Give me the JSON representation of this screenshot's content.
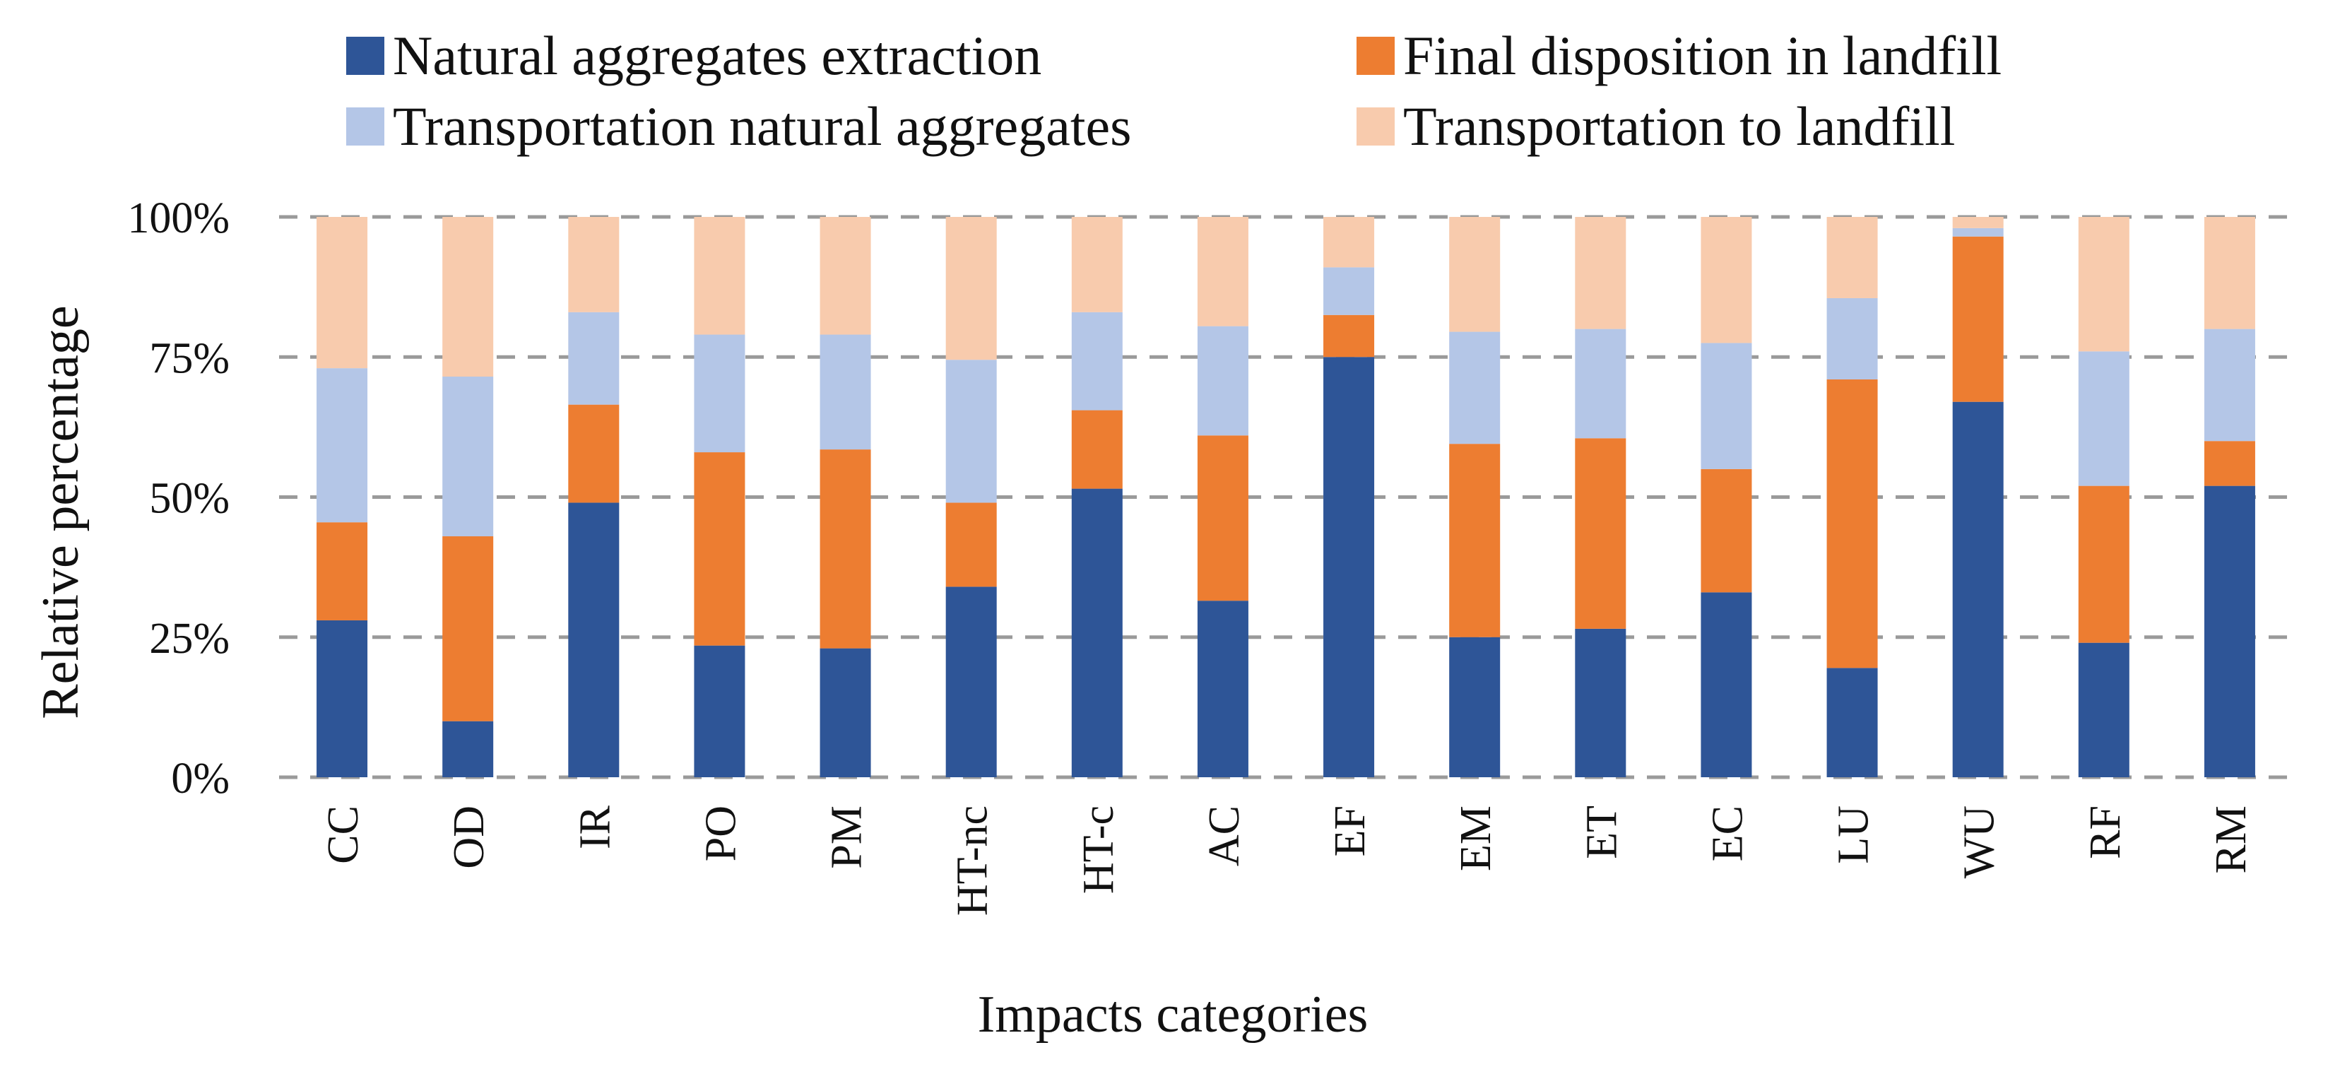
{
  "chart_data": {
    "type": "bar",
    "stacked": true,
    "normalized": true,
    "title": "",
    "xlabel": "Impacts categories",
    "ylabel": "Relative percentage",
    "ylim": [
      0,
      100
    ],
    "yticks": [
      0,
      25,
      50,
      75,
      100
    ],
    "ytick_labels": [
      "0%",
      "25%",
      "50%",
      "75%",
      "100%"
    ],
    "grid": true,
    "legend_position": "top",
    "categories": [
      "CC",
      "OD",
      "IR",
      "PO",
      "PM",
      "HT-nc",
      "HT-c",
      "AC",
      "EF",
      "EM",
      "ET",
      "EC",
      "LU",
      "WU",
      "RF",
      "RM"
    ],
    "series": [
      {
        "name": "Natural aggregates extraction",
        "color": "#2e5597",
        "values": [
          28,
          10,
          49,
          23.5,
          23,
          34,
          51.5,
          31.5,
          75,
          25,
          26.5,
          33,
          19.5,
          67,
          24,
          52
        ]
      },
      {
        "name": "Final disposition in landfill",
        "color": "#ed7d31",
        "values": [
          17.5,
          33,
          17.5,
          34.5,
          35.5,
          15,
          14,
          29.5,
          7.5,
          34.5,
          34,
          22,
          51.5,
          29.5,
          28,
          8
        ]
      },
      {
        "name": "Transportation natural aggregates",
        "color": "#b4c6e7",
        "values": [
          27.5,
          28.5,
          16.5,
          21,
          20.5,
          25.5,
          17.5,
          19.5,
          8.5,
          20,
          19.5,
          22.5,
          14.5,
          1.5,
          24,
          20
        ]
      },
      {
        "name": "Transportation to landfill",
        "color": "#f8cbad",
        "values": [
          27,
          28.5,
          17,
          21,
          21,
          25.5,
          17,
          19.5,
          9,
          20.5,
          20,
          22.5,
          14.5,
          2,
          24,
          20
        ]
      }
    ],
    "legend_order": [
      0,
      1,
      2,
      3
    ]
  }
}
